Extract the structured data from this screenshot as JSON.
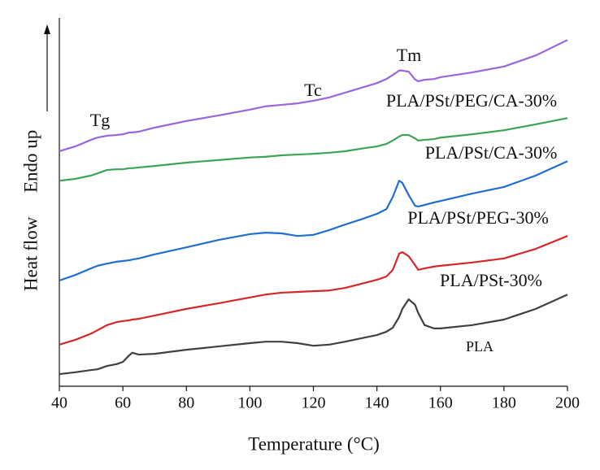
{
  "chart_data": {
    "type": "line",
    "xlabel": "Temperature (°C)",
    "ylabel": [
      "Heat flow",
      "Endo up"
    ],
    "annotations": [
      "Tg",
      "Tc",
      "Tm"
    ],
    "x": [
      40,
      45,
      50,
      52,
      55,
      58,
      60,
      62,
      63,
      65,
      70,
      80,
      90,
      100,
      105,
      110,
      115,
      120,
      125,
      130,
      135,
      140,
      143,
      145,
      147,
      148,
      150,
      152,
      153,
      155,
      158,
      160,
      170,
      180,
      190,
      200
    ],
    "series": [
      {
        "name": "PLA",
        "color": "#404040",
        "values": [
          3.3,
          3.8,
          4.4,
          4.6,
          5.5,
          6.0,
          6.6,
          8.4,
          9.1,
          8.6,
          8.8,
          9.9,
          10.8,
          11.7,
          12.1,
          12.1,
          11.7,
          11.0,
          11.3,
          12.1,
          13.0,
          13.9,
          14.8,
          15.9,
          18.8,
          21.0,
          23.6,
          22.1,
          19.9,
          16.6,
          15.7,
          15.7,
          16.6,
          18.1,
          21.0,
          24.9
        ]
      },
      {
        "name": "PLA/PSt-30%",
        "color": "#d62728",
        "values": [
          11.3,
          12.6,
          14.3,
          15.2,
          16.6,
          17.4,
          17.7,
          17.9,
          18.1,
          18.3,
          19.2,
          21.0,
          22.5,
          24.1,
          24.9,
          25.4,
          25.6,
          25.8,
          26.0,
          26.7,
          27.8,
          28.9,
          29.8,
          31.6,
          36.0,
          36.4,
          35.3,
          32.9,
          31.6,
          32.0,
          32.5,
          32.7,
          33.6,
          34.7,
          37.3,
          40.8
        ]
      },
      {
        "name": "PLA/PSt/PEG-30%",
        "color": "#1f6fd0",
        "values": [
          28.7,
          30.2,
          32.0,
          32.7,
          33.3,
          33.8,
          34.0,
          34.2,
          34.4,
          34.7,
          35.8,
          37.7,
          39.7,
          41.3,
          41.7,
          41.5,
          40.8,
          41.1,
          42.4,
          43.9,
          45.3,
          46.8,
          48.1,
          51.4,
          55.8,
          55.2,
          51.9,
          49.0,
          48.8,
          49.2,
          49.9,
          50.3,
          52.3,
          54.1,
          57.2,
          61.1
        ]
      },
      {
        "name": "PLA/PSt/CA-30%",
        "color": "#3aa655",
        "values": [
          55.8,
          56.3,
          57.2,
          57.8,
          58.7,
          58.9,
          58.9,
          59.2,
          59.2,
          59.4,
          59.8,
          60.7,
          61.4,
          62.1,
          62.3,
          62.7,
          62.9,
          63.1,
          63.4,
          63.8,
          64.5,
          65.1,
          65.8,
          66.7,
          67.8,
          68.2,
          68.2,
          67.3,
          66.7,
          66.9,
          67.1,
          67.5,
          68.4,
          69.5,
          71.1,
          72.8
        ]
      },
      {
        "name": "PLA/PSt/PEG/CA-30%",
        "color": "#9966dd",
        "values": [
          63.8,
          65.1,
          66.9,
          67.5,
          68.0,
          68.2,
          68.4,
          68.9,
          68.9,
          69.1,
          70.2,
          72.0,
          73.5,
          75.1,
          76.0,
          76.4,
          76.8,
          77.5,
          78.4,
          79.7,
          81.0,
          82.3,
          83.4,
          84.5,
          85.7,
          85.7,
          85.4,
          83.3,
          82.8,
          83.2,
          83.4,
          83.9,
          85.2,
          86.8,
          89.8,
          94.0
        ]
      }
    ],
    "xlim": [
      40,
      200
    ],
    "ylim": [
      0,
      100
    ],
    "xticks": [
      40,
      60,
      80,
      100,
      120,
      140,
      160,
      180,
      200
    ]
  }
}
